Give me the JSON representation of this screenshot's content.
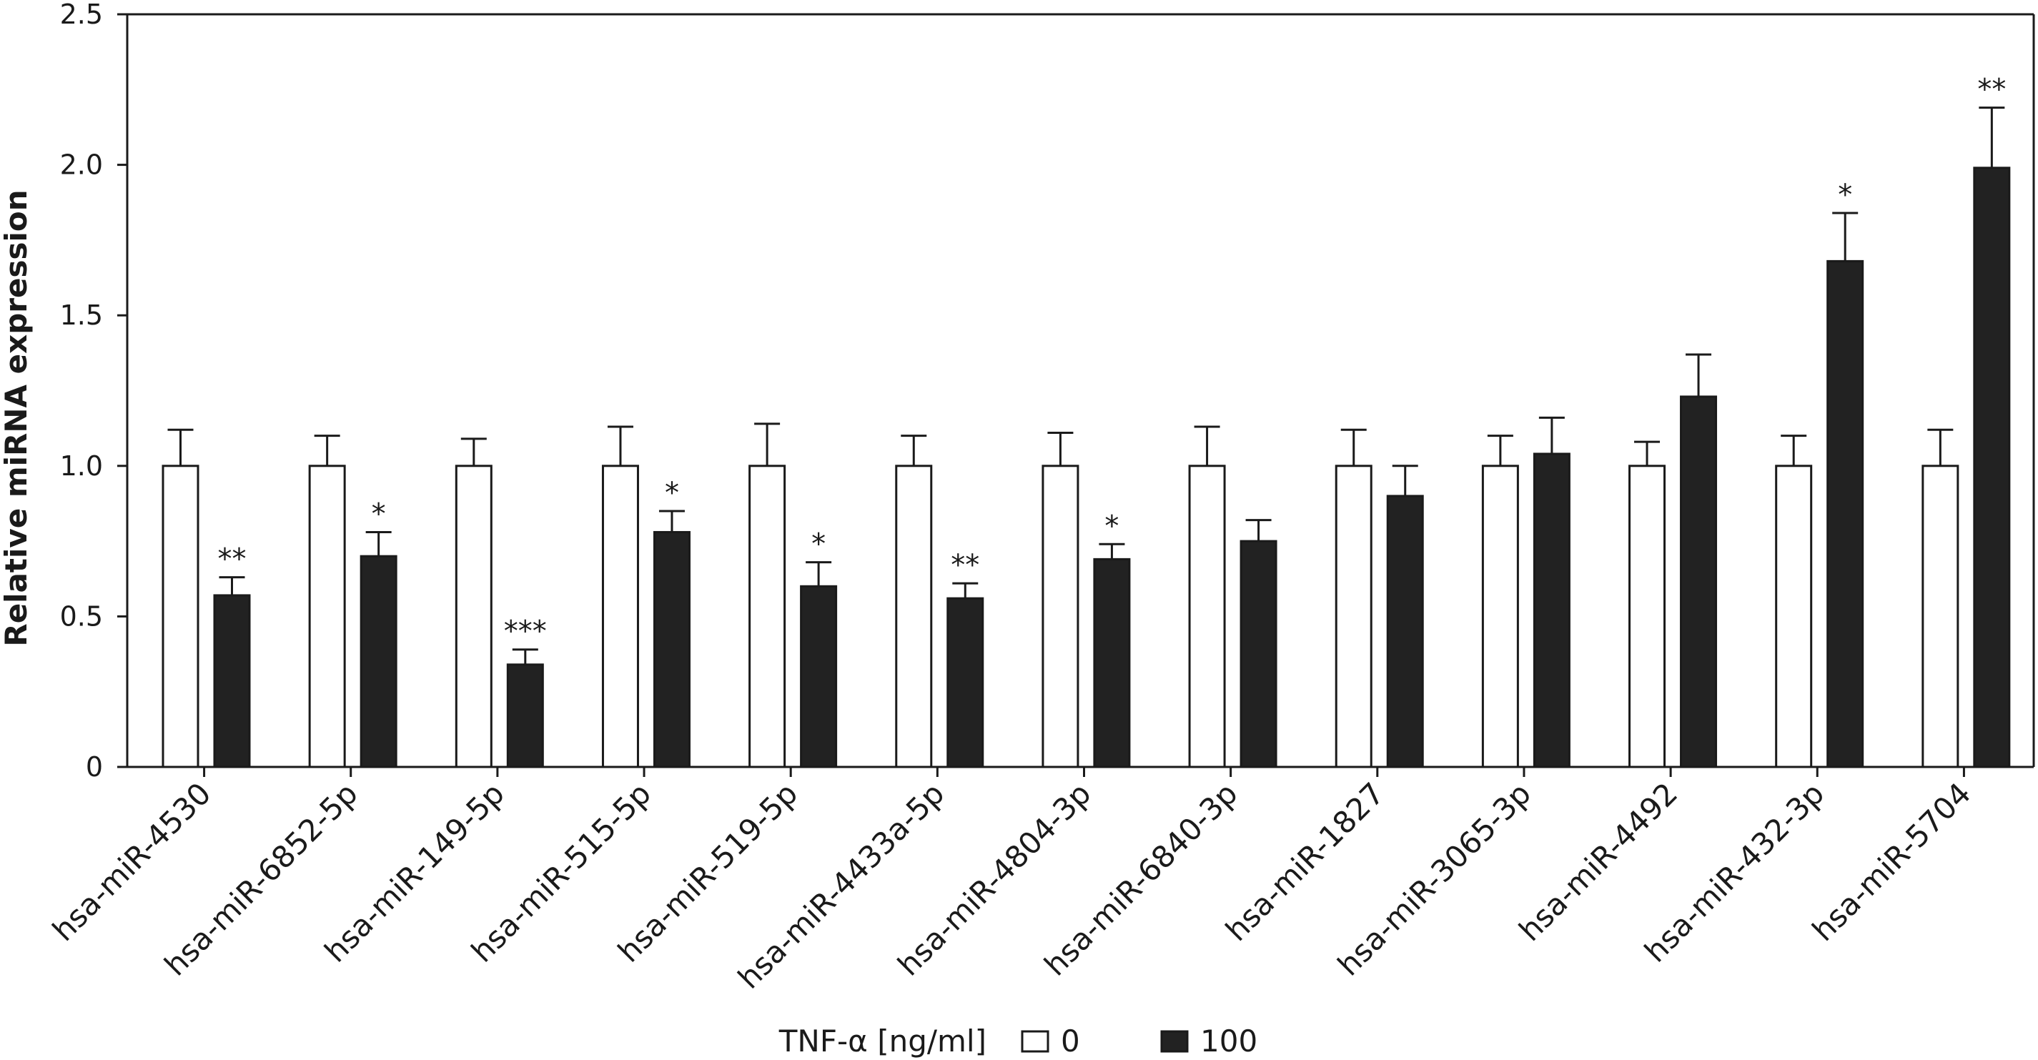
{
  "chart_data": {
    "type": "bar",
    "ylabel": "Relative miRNA expression",
    "xlabel": "",
    "ylim": [
      0,
      2.5
    ],
    "yticks": [
      {
        "value": 0,
        "label": "0"
      },
      {
        "value": 0.5,
        "label": "0.5"
      },
      {
        "value": 1.0,
        "label": "1.0"
      },
      {
        "value": 1.5,
        "label": "1.5"
      },
      {
        "value": 2.0,
        "label": "2.0"
      },
      {
        "value": 2.5,
        "label": "2.5"
      }
    ],
    "categories": [
      "hsa-miR-4530",
      "hsa-miR-6852-5p",
      "hsa-miR-149-5p",
      "hsa-miR-515-5p",
      "hsa-miR-519-5p",
      "hsa-miR-4433a-5p",
      "hsa-miR-4804-3p",
      "hsa-miR-6840-3p",
      "hsa-miR-1827",
      "hsa-miR-3065-3p",
      "hsa-miR-4492",
      "hsa-miR-432-3p",
      "hsa-miR-5704"
    ],
    "series": [
      {
        "name": "0",
        "color": "#ffffff",
        "values": [
          1.0,
          1.0,
          1.0,
          1.0,
          1.0,
          1.0,
          1.0,
          1.0,
          1.0,
          1.0,
          1.0,
          1.0,
          1.0
        ],
        "errors": [
          0.12,
          0.1,
          0.09,
          0.13,
          0.14,
          0.1,
          0.11,
          0.13,
          0.12,
          0.1,
          0.08,
          0.1,
          0.12
        ],
        "significance": [
          "",
          "",
          "",
          "",
          "",
          "",
          "",
          "",
          "",
          "",
          "",
          "",
          ""
        ]
      },
      {
        "name": "100",
        "color": "#222222",
        "values": [
          0.57,
          0.7,
          0.34,
          0.78,
          0.6,
          0.56,
          0.69,
          0.75,
          0.9,
          1.04,
          1.23,
          1.68,
          1.99
        ],
        "errors": [
          0.06,
          0.08,
          0.05,
          0.07,
          0.08,
          0.05,
          0.05,
          0.07,
          0.1,
          0.12,
          0.14,
          0.16,
          0.2
        ],
        "significance": [
          "**",
          "*",
          "***",
          "*",
          "*",
          "**",
          "*",
          "",
          "",
          "",
          "",
          "*",
          "**"
        ]
      }
    ],
    "legend": {
      "title": "TNF-α [ng/ml]",
      "position": "bottom"
    },
    "grid": false
  }
}
